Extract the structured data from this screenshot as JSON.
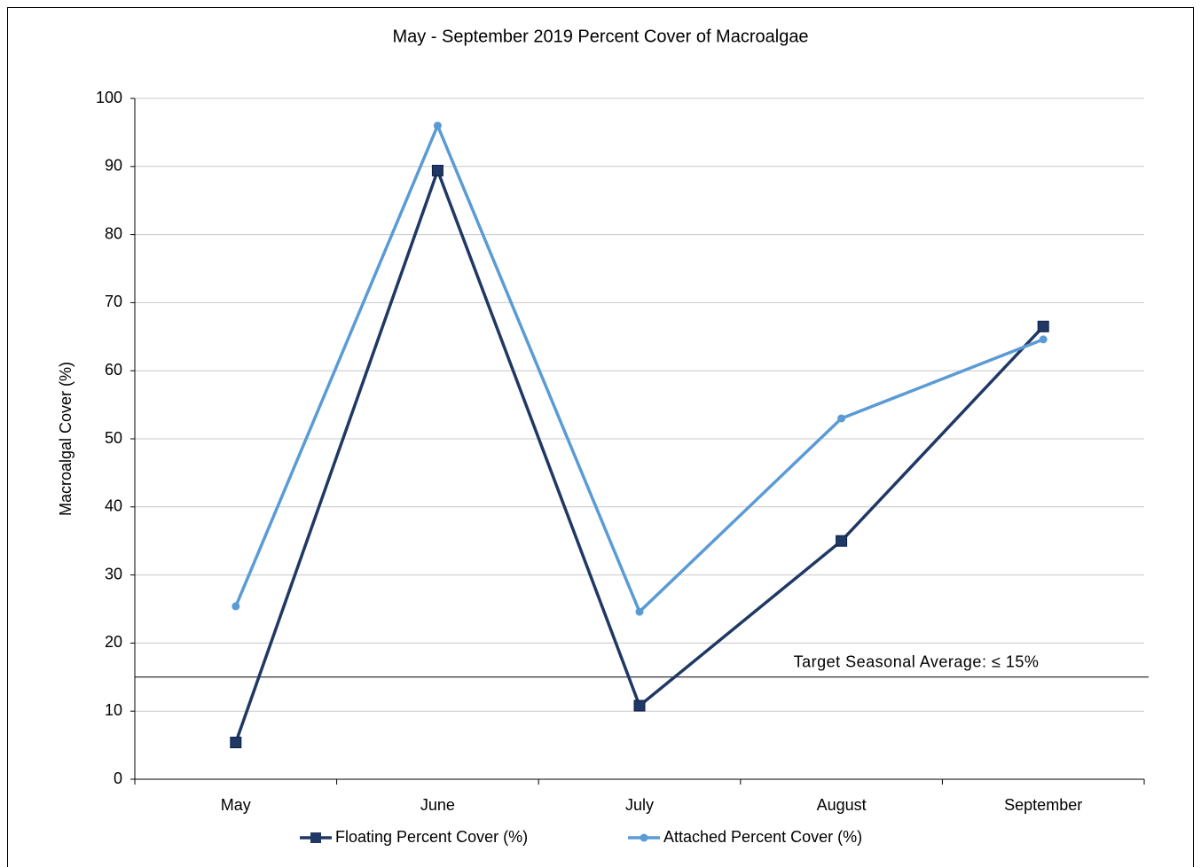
{
  "chart_data": {
    "type": "line",
    "title": "May - September 2019 Percent Cover of Macroalgae",
    "y_label": "Macroalgal Cover (%)",
    "categories": [
      "May",
      "June",
      "July",
      "August",
      "September"
    ],
    "series": [
      {
        "name": "Floating Percent Cover (%)",
        "color": "#1f3864",
        "marker": "square",
        "values": [
          5.4,
          89.4,
          10.8,
          35,
          66.5
        ]
      },
      {
        "name": "Attached Percent Cover (%)",
        "color": "#5b9bd5",
        "marker": "circle",
        "values": [
          25.4,
          96,
          24.6,
          53,
          64.6
        ]
      }
    ],
    "target": 15,
    "target_label": "Target Seasonal Average: ≤ 15%",
    "ylim": [
      0,
      100
    ],
    "yticks": [
      0,
      10,
      20,
      30,
      40,
      50,
      60,
      70,
      80,
      90,
      100
    ],
    "grid": true,
    "legend": "bottom"
  }
}
